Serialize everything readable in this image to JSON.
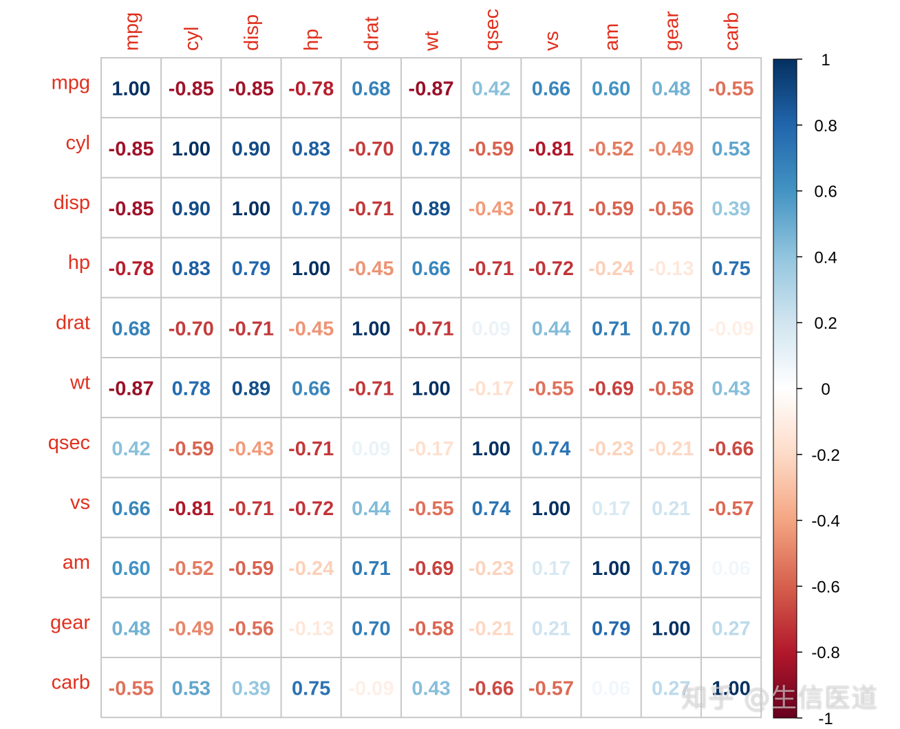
{
  "chart_data": {
    "type": "heatmap",
    "title": "",
    "variables": [
      "mpg",
      "cyl",
      "disp",
      "hp",
      "drat",
      "wt",
      "qsec",
      "vs",
      "am",
      "gear",
      "carb"
    ],
    "matrix": [
      [
        1.0,
        -0.85,
        -0.85,
        -0.78,
        0.68,
        -0.87,
        0.42,
        0.66,
        0.6,
        0.48,
        -0.55
      ],
      [
        -0.85,
        1.0,
        0.9,
        0.83,
        -0.7,
        0.78,
        -0.59,
        -0.81,
        -0.52,
        -0.49,
        0.53
      ],
      [
        -0.85,
        0.9,
        1.0,
        0.79,
        -0.71,
        0.89,
        -0.43,
        -0.71,
        -0.59,
        -0.56,
        0.39
      ],
      [
        -0.78,
        0.83,
        0.79,
        1.0,
        -0.45,
        0.66,
        -0.71,
        -0.72,
        -0.24,
        -0.13,
        0.75
      ],
      [
        0.68,
        -0.7,
        -0.71,
        -0.45,
        1.0,
        -0.71,
        0.09,
        0.44,
        0.71,
        0.7,
        -0.09
      ],
      [
        -0.87,
        0.78,
        0.89,
        0.66,
        -0.71,
        1.0,
        -0.17,
        -0.55,
        -0.69,
        -0.58,
        0.43
      ],
      [
        0.42,
        -0.59,
        -0.43,
        -0.71,
        0.09,
        -0.17,
        1.0,
        0.74,
        -0.23,
        -0.21,
        -0.66
      ],
      [
        0.66,
        -0.81,
        -0.71,
        -0.72,
        0.44,
        -0.55,
        0.74,
        1.0,
        0.17,
        0.21,
        -0.57
      ],
      [
        0.6,
        -0.52,
        -0.59,
        -0.24,
        0.71,
        -0.69,
        -0.23,
        0.17,
        1.0,
        0.79,
        0.06
      ],
      [
        0.48,
        -0.49,
        -0.56,
        -0.13,
        0.7,
        -0.58,
        -0.21,
        0.21,
        0.79,
        1.0,
        0.27
      ],
      [
        -0.55,
        0.53,
        0.39,
        0.75,
        -0.09,
        0.43,
        -0.66,
        -0.57,
        0.06,
        0.27,
        1.0
      ]
    ],
    "color_scale": {
      "stops": [
        -1,
        -0.8,
        -0.6,
        -0.4,
        -0.2,
        0,
        0.2,
        0.4,
        0.6,
        0.8,
        1
      ],
      "colors": [
        "#67001F",
        "#B2182B",
        "#D6604D",
        "#F4A582",
        "#FDDBC7",
        "#FFFFFF",
        "#D1E5F0",
        "#92C5DE",
        "#4393C3",
        "#2166AC",
        "#053061"
      ]
    },
    "colorbar": {
      "ticks": [
        1,
        0.8,
        0.6,
        0.4,
        0.2,
        0,
        -0.2,
        -0.4,
        -0.6,
        -0.8,
        -1
      ],
      "tick_labels": [
        "1",
        "0.8",
        "0.6",
        "0.4",
        "0.2",
        "0",
        "-0.2",
        "-0.4",
        "-0.6",
        "-0.8",
        "-1"
      ],
      "range": [
        -1,
        1
      ]
    },
    "label_color": "#E0301E",
    "grid": true
  },
  "watermark": "知乎 @生信医道"
}
